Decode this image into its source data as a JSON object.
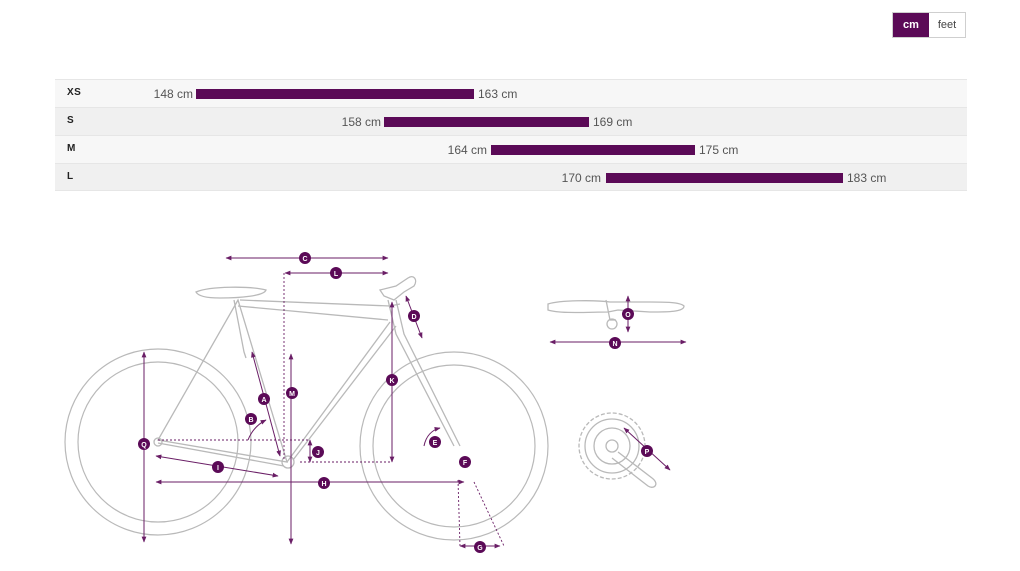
{
  "units": {
    "cm": "cm",
    "feet": "feet",
    "selected": "cm"
  },
  "brand_color": "#5b0a57",
  "sizes": [
    {
      "label": "XS",
      "min": "148 cm",
      "max": "163 cm",
      "min_cm": 148,
      "max_cm": 163
    },
    {
      "label": "S",
      "min": "158 cm",
      "max": "169 cm",
      "min_cm": 158,
      "max_cm": 169
    },
    {
      "label": "M",
      "min": "164 cm",
      "max": "175 cm",
      "min_cm": 164,
      "max_cm": 175
    },
    {
      "label": "L",
      "min": "170 cm",
      "max": "183 cm",
      "min_cm": 170,
      "max_cm": 183
    }
  ],
  "geometry_markers": {
    "A": "A",
    "B": "B",
    "C": "C",
    "D": "D",
    "E": "E",
    "F": "F",
    "G": "G",
    "H": "H",
    "I": "I",
    "J": "J",
    "K": "K",
    "L": "L",
    "M": "M",
    "N": "N",
    "O": "O",
    "P": "P",
    "Q": "Q"
  }
}
